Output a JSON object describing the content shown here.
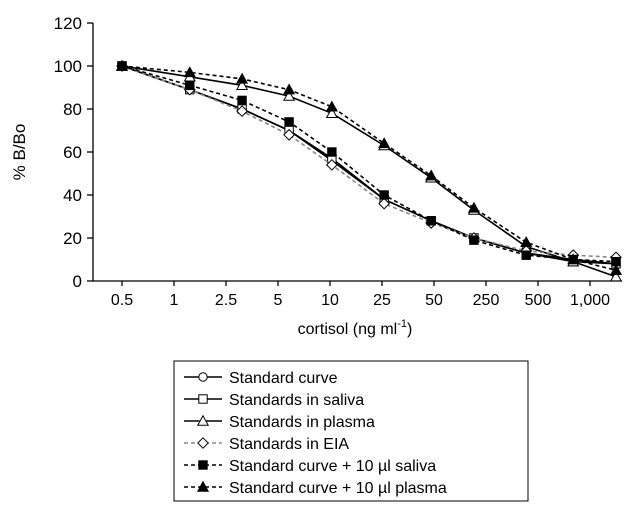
{
  "chart_data": {
    "type": "line",
    "xlabel": "cortisol (ng ml",
    "xlabel_sup": "-1",
    "xlabel_end": ")",
    "ylabel": "% B/Bo",
    "ylim": [
      0,
      120
    ],
    "yticks": [
      0,
      20,
      40,
      60,
      80,
      100,
      120
    ],
    "xscale": "log",
    "x_tick_labels": [
      "0.5",
      "1",
      "2.5",
      "5",
      "10",
      "25",
      "50",
      "250",
      "500",
      "1,000"
    ],
    "x_tick_values": [
      0.5,
      1,
      2.5,
      5,
      10,
      25,
      50,
      250,
      500,
      1000
    ],
    "legend_position": "bottom",
    "series": [
      {
        "name": "Standard curve",
        "marker": "circle-open",
        "line": "solid",
        "color": "#000000",
        "x": [
          0.25,
          0.75,
          1.75,
          3.75,
          7.5,
          17.5,
          37.5,
          75,
          175,
          375,
          750
        ],
        "y": [
          100,
          89,
          80,
          70,
          56,
          38,
          28,
          20,
          13,
          10,
          8
        ]
      },
      {
        "name": "Standards in saliva",
        "marker": "square-open",
        "line": "solid",
        "color": "#000000",
        "x": [
          0.25,
          0.75,
          1.75,
          3.75,
          7.5,
          17.5,
          37.5,
          75,
          175,
          375,
          750
        ],
        "y": [
          100,
          89,
          80,
          70,
          57,
          38,
          28,
          20,
          13,
          9,
          8
        ]
      },
      {
        "name": "Standards in plasma",
        "marker": "triangle-open",
        "line": "solid",
        "color": "#000000",
        "x": [
          0.25,
          0.75,
          1.75,
          3.75,
          7.5,
          17.5,
          37.5,
          75,
          175,
          375,
          750
        ],
        "y": [
          100,
          95,
          91,
          86,
          78,
          63,
          48,
          33,
          16,
          9,
          2
        ]
      },
      {
        "name": "Standards in EIA",
        "marker": "diamond-open",
        "line": "dashed",
        "color": "#888888",
        "x": [
          0.25,
          0.75,
          1.75,
          3.75,
          7.5,
          17.5,
          37.5,
          75,
          175,
          375,
          750
        ],
        "y": [
          100,
          89,
          79,
          68,
          54,
          36,
          27,
          20,
          14,
          12,
          11
        ]
      },
      {
        "name": "Standard curve + 10 µl saliva",
        "marker": "square-filled",
        "line": "dashed",
        "color": "#000000",
        "x": [
          0.25,
          0.75,
          1.75,
          3.75,
          7.5,
          17.5,
          37.5,
          75,
          175,
          375,
          750
        ],
        "y": [
          100,
          91,
          84,
          74,
          60,
          40,
          28,
          19,
          12,
          10,
          9
        ]
      },
      {
        "name": "Standard curve + 10 µl plasma",
        "marker": "triangle-filled",
        "line": "dashed",
        "color": "#000000",
        "x": [
          0.25,
          0.75,
          1.75,
          3.75,
          7.5,
          17.5,
          37.5,
          75,
          175,
          375,
          750
        ],
        "y": [
          100,
          97,
          94,
          89,
          81,
          64,
          49,
          34,
          18,
          10,
          5
        ]
      }
    ]
  }
}
